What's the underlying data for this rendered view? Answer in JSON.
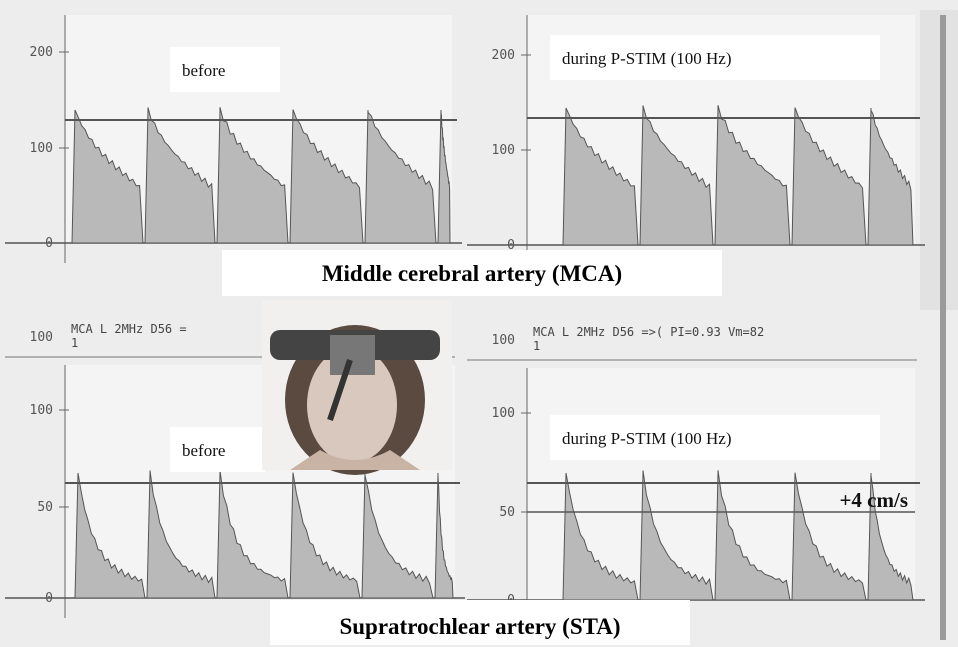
{
  "panels": [
    {
      "y_ticks": [
        "200",
        "100",
        "0"
      ],
      "label": "before"
    },
    {
      "y_ticks": [
        "200",
        "100",
        "0"
      ],
      "label": "during P-STIM (100 Hz)"
    },
    {
      "y_ticks": [
        "100",
        "50",
        "0"
      ],
      "label": "before"
    },
    {
      "y_ticks": [
        "100",
        "50",
        "0"
      ],
      "label": "during P-STIM (100 Hz)"
    }
  ],
  "mca_title": "Middle cerebral artery (MCA)",
  "sta_title": "Supratrochlear artery (STA)",
  "readouts": [
    {
      "tick": "100",
      "line1": "MCA L 2MHz D56 =",
      "line2": "1"
    },
    {
      "tick": "100",
      "line1": "MCA L 2MHz D56 =>( PI=0.93 Vm=82",
      "line2": "1"
    }
  ],
  "annotation": "+4 cm/s"
}
